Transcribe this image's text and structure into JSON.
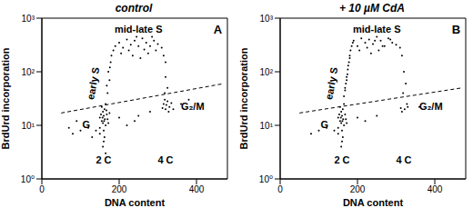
{
  "chart_data": [
    {
      "type": "scatter",
      "title": "control",
      "panel_label": "A",
      "x_label": "DNA content",
      "y_label": "BrdUrd incorporation",
      "xlim": [
        0,
        480
      ],
      "xticks": [
        0,
        200,
        400
      ],
      "ylim": [
        1,
        1000
      ],
      "log": "y",
      "yticks": [
        {
          "value": 1,
          "label": "10⁰"
        },
        {
          "value": 10,
          "label": "10¹"
        },
        {
          "value": 100,
          "label": "10²"
        },
        {
          "value": 1000,
          "label": "10³"
        }
      ],
      "annotations": [
        "mid-late S",
        "early S",
        "G",
        "G₂/M",
        "2 C",
        "4 C"
      ],
      "series": [
        {
          "type": "scatter",
          "color": "#000000",
          "x": [
            155,
            160,
            165,
            158,
            170,
            150,
            162,
            168,
            155,
            172,
            160,
            165,
            150,
            175,
            158,
            163,
            153,
            167,
            161,
            157,
            160,
            158,
            162,
            165,
            150,
            140,
            130,
            120,
            100,
            80,
            90,
            70,
            170,
            175,
            172,
            178,
            168,
            180,
            185,
            176,
            190,
            200,
            210,
            220,
            230,
            240,
            250,
            260,
            270,
            280,
            290,
            300,
            310,
            315,
            320,
            205,
            225,
            245,
            265,
            285,
            295,
            235,
            255,
            275,
            320,
            325,
            318,
            315,
            320,
            325,
            330,
            318,
            328,
            322,
            335,
            312,
            340,
            250,
            240,
            280,
            220,
            200,
            360,
            380
          ],
          "values": [
            12,
            15,
            10,
            18,
            13,
            9,
            20,
            16,
            22,
            11,
            8,
            25,
            14,
            17,
            11,
            13,
            16,
            19,
            12,
            14,
            5,
            4,
            6,
            3,
            7,
            8,
            6,
            9,
            8,
            7,
            12,
            9,
            40,
            70,
            100,
            150,
            55,
            200,
            250,
            120,
            300,
            350,
            280,
            400,
            320,
            380,
            300,
            420,
            350,
            300,
            380,
            330,
            280,
            200,
            150,
            220,
            250,
            450,
            260,
            450,
            250,
            200,
            180,
            220,
            80,
            50,
            40,
            25,
            20,
            28,
            22,
            30,
            18,
            24,
            26,
            21,
            20,
            15,
            12,
            18,
            10,
            14,
            25,
            30
          ]
        },
        {
          "type": "line",
          "line_style": "dashed",
          "color": "#000000",
          "x": [
            50,
            470
          ],
          "values": [
            17,
            60
          ]
        }
      ]
    },
    {
      "type": "scatter",
      "title": "+ 10 µM CdA",
      "panel_label": "B",
      "x_label": "DNA content",
      "y_label": "BrdUrd incorporation",
      "xlim": [
        0,
        480
      ],
      "xticks": [
        0,
        200,
        400
      ],
      "ylim": [
        1,
        1000
      ],
      "log": "y",
      "yticks": [
        {
          "value": 1,
          "label": "10⁰"
        },
        {
          "value": 10,
          "label": "10¹"
        },
        {
          "value": 100,
          "label": "10²"
        },
        {
          "value": 1000,
          "label": "10³"
        }
      ],
      "annotations": [
        "mid-late S",
        "early S",
        "G",
        "G₂/M",
        "2 C",
        "4 C"
      ],
      "series": [
        {
          "type": "scatter",
          "color": "#000000",
          "x": [
            155,
            160,
            165,
            158,
            170,
            150,
            162,
            168,
            155,
            172,
            160,
            165,
            150,
            158,
            163,
            153,
            161,
            157,
            160,
            158,
            162,
            150,
            140,
            120,
            100,
            80,
            165,
            168,
            170,
            172,
            175,
            168,
            178,
            180,
            182,
            176,
            185,
            188,
            172,
            174,
            180,
            190,
            200,
            210,
            220,
            230,
            240,
            250,
            260,
            270,
            280,
            290,
            300,
            310,
            205,
            225,
            245,
            265,
            285,
            235,
            255,
            315,
            320,
            325,
            318,
            322,
            328,
            315,
            330,
            312,
            250,
            220,
            200,
            360
          ],
          "values": [
            12,
            15,
            10,
            18,
            13,
            9,
            20,
            16,
            22,
            11,
            8,
            25,
            14,
            11,
            13,
            16,
            12,
            14,
            5,
            4,
            6,
            7,
            8,
            9,
            8,
            7,
            35,
            45,
            60,
            80,
            110,
            50,
            150,
            200,
            250,
            130,
            300,
            350,
            70,
            90,
            180,
            380,
            300,
            420,
            350,
            400,
            330,
            450,
            380,
            300,
            420,
            350,
            320,
            280,
            250,
            280,
            380,
            300,
            400,
            220,
            250,
            200,
            100,
            60,
            40,
            20,
            25,
            18,
            22,
            21,
            15,
            12,
            14,
            22
          ]
        },
        {
          "type": "line",
          "line_style": "dashed",
          "color": "#000000",
          "x": [
            50,
            470
          ],
          "values": [
            17,
            50
          ]
        }
      ]
    }
  ]
}
